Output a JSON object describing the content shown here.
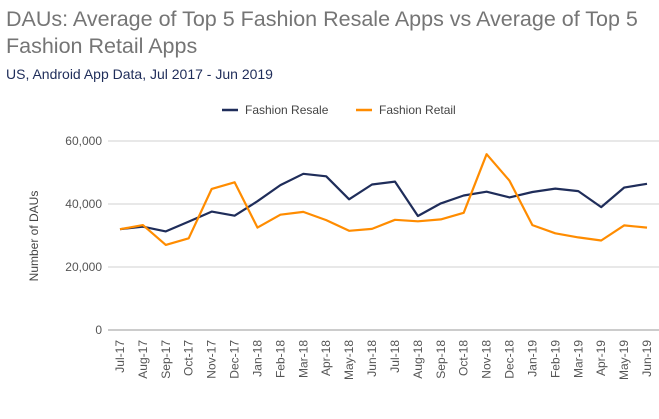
{
  "chart_data": {
    "type": "line",
    "title": "DAUs: Average of Top 5 Fashion Resale Apps vs Average of Top 5 Fashion Retail Apps",
    "subtitle": "US, Android App Data, Jul 2017 - Jun 2019",
    "xlabel": "",
    "ylabel": "Number of DAUs",
    "ylim": [
      0,
      60000
    ],
    "yticks": [
      "0",
      "20,000",
      "40,000",
      "60,000"
    ],
    "ytick_values": [
      0,
      20000,
      40000,
      60000
    ],
    "grid": true,
    "legend": "top",
    "categories": [
      "Jul-17",
      "Aug-17",
      "Sep-17",
      "Oct-17",
      "Nov-17",
      "Dec-17",
      "Jan-18",
      "Feb-18",
      "Mar-18",
      "Apr-18",
      "May-18",
      "Jun-18",
      "Jul-18",
      "Aug-18",
      "Sep-18",
      "Oct-18",
      "Nov-18",
      "Dec-18",
      "Jan-19",
      "Feb-19",
      "Mar-19",
      "Apr-19",
      "May-19",
      "Jun-19"
    ],
    "series": [
      {
        "name": "Fashion Resale",
        "color": "#1f2d5a",
        "values": [
          32000,
          32800,
          31300,
          34400,
          37600,
          36300,
          40900,
          46000,
          49600,
          48800,
          41500,
          46200,
          47100,
          36200,
          40200,
          42700,
          43900,
          42100,
          43800,
          44900,
          44100,
          39000,
          45200,
          46400
        ]
      },
      {
        "name": "Fashion Retail",
        "color": "#ff8c00",
        "values": [
          32000,
          33300,
          27000,
          29100,
          44800,
          46900,
          32500,
          36600,
          37500,
          34900,
          31500,
          32100,
          35000,
          34500,
          35100,
          37200,
          55800,
          47400,
          33300,
          30700,
          29400,
          28400,
          33200,
          32500
        ]
      }
    ]
  }
}
